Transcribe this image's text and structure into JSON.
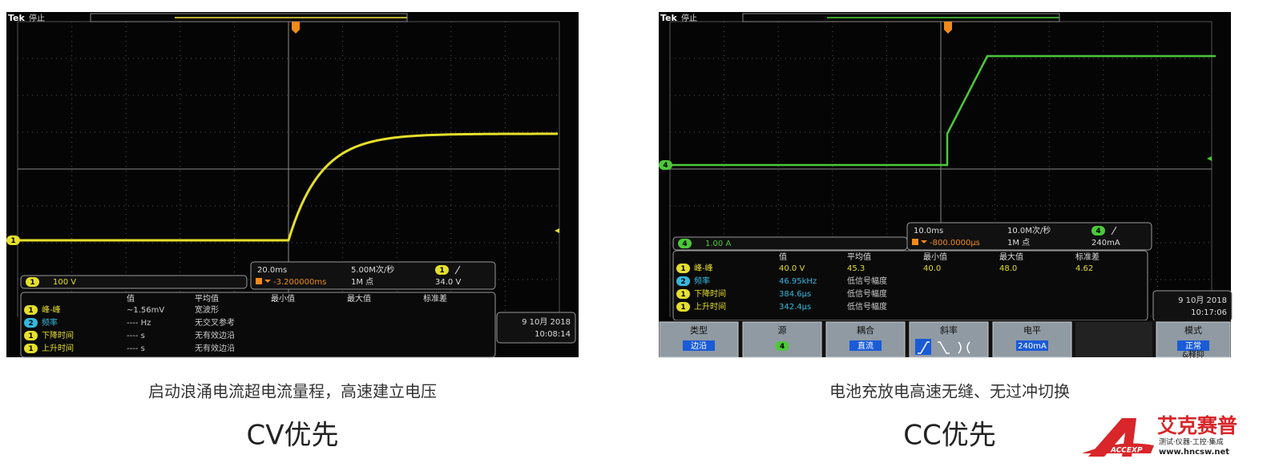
{
  "panels": [
    {
      "header": {
        "brand": "Tek",
        "status": "停止"
      },
      "channel_readout": {
        "channel": "1",
        "value": "100 V"
      },
      "timebase": {
        "scale": "20.0ms",
        "rate": "5.00M次/秒",
        "offset": "-3.200000ms",
        "points": "1M 点",
        "trigger_channel": "1",
        "level": "34.0 V"
      },
      "table": {
        "columns": [
          "值",
          "平均值",
          "最小值",
          "最大值",
          "标准差"
        ],
        "rows": [
          [
            "1",
            "峰-峰",
            "~1.56mV",
            "宽波形"
          ],
          [
            "2",
            "频率",
            "---- Hz",
            "无交叉参考"
          ],
          [
            "1",
            "下降时间",
            "---- s",
            "无有效边沿"
          ],
          [
            "1",
            "上升时间",
            "---- s",
            "无有效边沿"
          ]
        ]
      },
      "date": "9 10月 2018",
      "time": "10:08:14",
      "caption": "启动浪涌电流超电流量程，高速建立电压",
      "title": "CV优先"
    },
    {
      "header": {
        "brand": "Tek",
        "status": "停止"
      },
      "channel_readout": {
        "channel": "4",
        "value": "1.00 A"
      },
      "timebase": {
        "scale": "10.0ms",
        "rate": "10.0M次/秒",
        "offset": "-800.0000μs",
        "points": "1M 点",
        "trigger_channel": "4",
        "level": "240mA"
      },
      "table": {
        "columns": [
          "值",
          "平均值",
          "最小值",
          "最大值",
          "标准差"
        ],
        "rows": [
          [
            "1",
            "峰-峰",
            "40.0 V",
            "45.3",
            "40.0",
            "48.0",
            "4.62"
          ],
          [
            "2",
            "频率",
            "46.95kHz",
            "低信号幅度"
          ],
          [
            "1",
            "下降时间",
            "384.6μs",
            "低信号幅度"
          ],
          [
            "1",
            "上升时间",
            "342.4μs",
            "低信号幅度"
          ]
        ]
      },
      "date": "9 10月 2018",
      "time": "10:17:06",
      "menu": [
        {
          "label": "类型",
          "value": "边沿"
        },
        {
          "label": "源",
          "value": "4"
        },
        {
          "label": "耦合",
          "value": "直流"
        },
        {
          "label": "斜率"
        },
        {
          "label": "电平",
          "value": "240mA"
        },
        {
          "label": "模式",
          "value": "正常",
          "extra": "&释抑"
        }
      ],
      "caption": "电池充放电高速无缝、无过冲切换",
      "title": "CC优先"
    }
  ],
  "logo": {
    "name": "艾克赛普",
    "tagline": "测试·仪器·工控·集成",
    "url": "www.hncsw.net",
    "mark": "ACCEXP"
  }
}
